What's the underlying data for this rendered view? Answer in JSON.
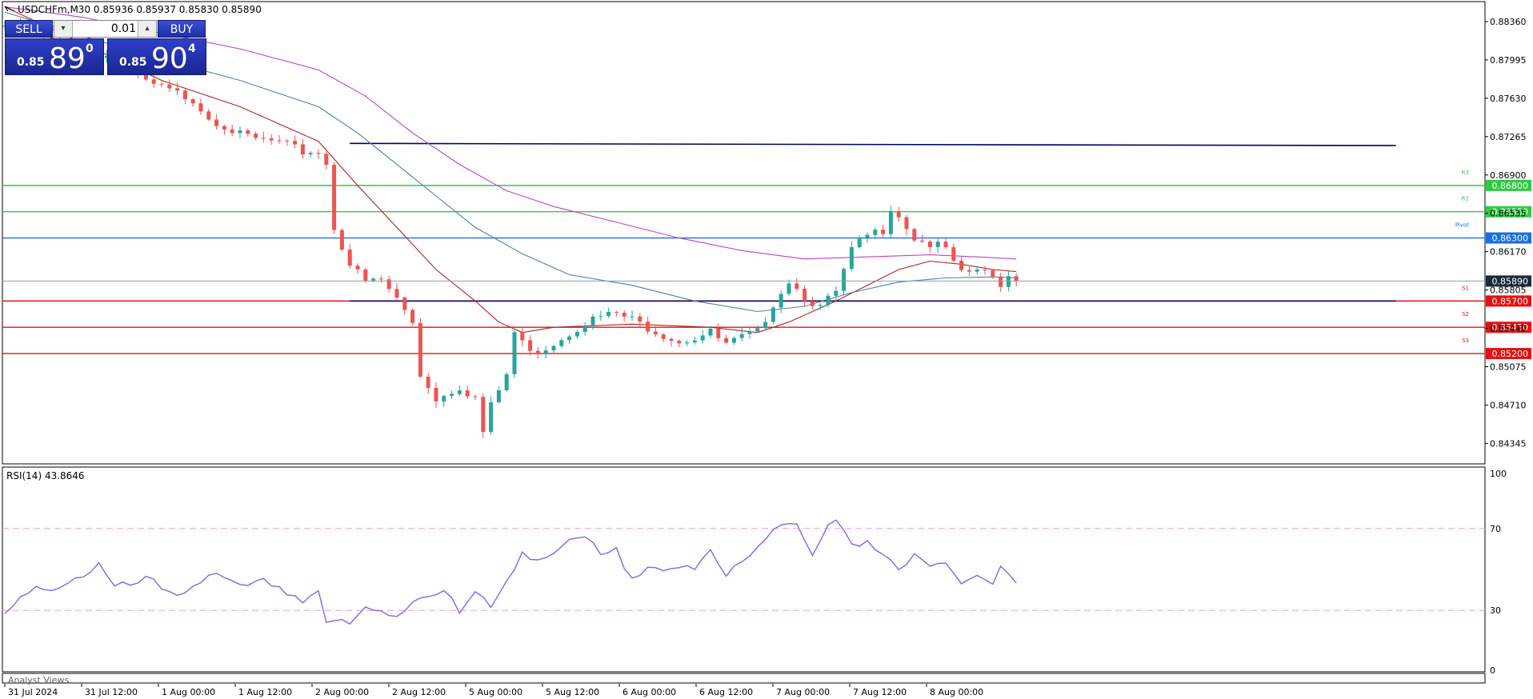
{
  "header": {
    "symbol_line": "USDCHFm,M30  0.85936 0.85937 0.85830 0.85890"
  },
  "trade_panel": {
    "sell_label": "SELL",
    "buy_label": "BUY",
    "lot": "0.01",
    "sell_price_small": "0.85",
    "sell_price_big": "89",
    "sell_price_sup": "0",
    "buy_price_small": "0.85",
    "buy_price_big": "90",
    "buy_price_sup": "4",
    "spin_down": "▾",
    "spin_up": "▴"
  },
  "rsi_label": "RSI(14) 43.8646",
  "analyst_label": "Analyst Views",
  "colors": {
    "bull": "#26a69a",
    "bear": "#ef5350",
    "ma_fast": "#b22222",
    "ma_mid": "#4682b4",
    "ma_slow": "#c040d0",
    "resistance": "#2ecc40",
    "pivot": "#1a6fe0",
    "support": "#e81010",
    "trendline": "#000066",
    "rsi": "#7b68ee",
    "rsi_levels": "#e0a0e0",
    "current": "#1a2a3a"
  },
  "chart_data": [
    {
      "type": "candlestick",
      "symbol": "USDCHFm",
      "timeframe": "M30",
      "ohlc_header": {
        "open": 0.85936,
        "high": 0.85937,
        "low": 0.8583,
        "close": 0.8589
      },
      "ylim": [
        0.8415,
        0.8855
      ],
      "y_ticks": [
        "0.88360",
        "0.87995",
        "0.87630",
        "0.87265",
        "0.86900",
        "0.86535",
        "0.86170",
        "0.85805",
        "0.85440",
        "0.85075",
        "0.84710",
        "0.84345"
      ],
      "x_ticks": [
        "31 Jul 2024",
        "31 Jul 12:00",
        "1 Aug 00:00",
        "1 Aug 12:00",
        "2 Aug 00:00",
        "2 Aug 12:00",
        "5 Aug 00:00",
        "5 Aug 12:00",
        "6 Aug 00:00",
        "6 Aug 12:00",
        "7 Aug 00:00",
        "7 Aug 12:00",
        "8 Aug 00:00"
      ],
      "close_path": [
        [
          0,
          0.8832
        ],
        [
          4,
          0.8822
        ],
        [
          8,
          0.8812
        ],
        [
          12,
          0.8805
        ],
        [
          15,
          0.88
        ],
        [
          18,
          0.8778
        ],
        [
          21,
          0.877
        ],
        [
          24,
          0.8762
        ],
        [
          26,
          0.8745
        ],
        [
          28,
          0.8737
        ],
        [
          30,
          0.8728
        ],
        [
          32,
          0.8724
        ],
        [
          34,
          0.8722
        ],
        [
          36,
          0.8718
        ],
        [
          38,
          0.8712
        ],
        [
          40,
          0.8712
        ],
        [
          41,
          0.87
        ],
        [
          42,
          0.864
        ],
        [
          44,
          0.8605
        ],
        [
          46,
          0.8588
        ],
        [
          48,
          0.859
        ],
        [
          50,
          0.8572
        ],
        [
          52,
          0.855
        ],
        [
          53,
          0.85
        ],
        [
          54,
          0.849
        ],
        [
          55,
          0.8475
        ],
        [
          56,
          0.8482
        ],
        [
          58,
          0.8488
        ],
        [
          60,
          0.8478
        ],
        [
          61,
          0.8445
        ],
        [
          62,
          0.847
        ],
        [
          64,
          0.85
        ],
        [
          65,
          0.854
        ],
        [
          66,
          0.853
        ],
        [
          68,
          0.8522
        ],
        [
          70,
          0.853
        ],
        [
          72,
          0.854
        ],
        [
          74,
          0.855
        ],
        [
          76,
          0.8555
        ],
        [
          78,
          0.8558
        ],
        [
          80,
          0.8552
        ],
        [
          82,
          0.8545
        ],
        [
          84,
          0.8538
        ],
        [
          86,
          0.8532
        ],
        [
          88,
          0.8535
        ],
        [
          90,
          0.854
        ],
        [
          92,
          0.8528
        ],
        [
          94,
          0.8535
        ],
        [
          96,
          0.854
        ],
        [
          98,
          0.8568
        ],
        [
          100,
          0.859
        ],
        [
          102,
          0.8574
        ],
        [
          104,
          0.8564
        ],
        [
          106,
          0.8578
        ],
        [
          108,
          0.8618
        ],
        [
          110,
          0.8632
        ],
        [
          112,
          0.8638
        ],
        [
          113,
          0.866
        ],
        [
          114,
          0.8652
        ],
        [
          116,
          0.863
        ],
        [
          118,
          0.8624
        ],
        [
          120,
          0.862
        ],
        [
          121,
          0.8605
        ],
        [
          122,
          0.8595
        ],
        [
          124,
          0.86
        ],
        [
          126,
          0.8592
        ],
        [
          127,
          0.8587
        ],
        [
          128,
          0.8594
        ],
        [
          129,
          0.8589
        ]
      ],
      "moving_averages": [
        {
          "color_key": "ma_fast",
          "points": [
            [
              0,
              0.885
            ],
            [
              10,
              0.8815
            ],
            [
              20,
              0.878
            ],
            [
              30,
              0.8755
            ],
            [
              40,
              0.8722
            ],
            [
              45,
              0.868
            ],
            [
              50,
              0.864
            ],
            [
              55,
              0.86
            ],
            [
              60,
              0.857
            ],
            [
              63,
              0.855
            ],
            [
              66,
              0.854
            ],
            [
              70,
              0.8545
            ],
            [
              80,
              0.8548
            ],
            [
              90,
              0.8545
            ],
            [
              96,
              0.854
            ],
            [
              100,
              0.855
            ],
            [
              106,
              0.857
            ],
            [
              110,
              0.8585
            ],
            [
              114,
              0.86
            ],
            [
              118,
              0.8608
            ],
            [
              122,
              0.8605
            ],
            [
              126,
              0.86
            ],
            [
              129,
              0.8598
            ]
          ]
        },
        {
          "color_key": "ma_mid",
          "points": [
            [
              0,
              0.8845
            ],
            [
              10,
              0.8822
            ],
            [
              20,
              0.88
            ],
            [
              30,
              0.878
            ],
            [
              40,
              0.8755
            ],
            [
              45,
              0.873
            ],
            [
              50,
              0.87
            ],
            [
              55,
              0.867
            ],
            [
              60,
              0.864
            ],
            [
              66,
              0.8615
            ],
            [
              72,
              0.8595
            ],
            [
              80,
              0.8585
            ],
            [
              88,
              0.857
            ],
            [
              96,
              0.856
            ],
            [
              102,
              0.8565
            ],
            [
              108,
              0.8578
            ],
            [
              114,
              0.8588
            ],
            [
              120,
              0.8592
            ],
            [
              126,
              0.8593
            ],
            [
              129,
              0.8592
            ]
          ]
        },
        {
          "color_key": "ma_slow",
          "points": [
            [
              0,
              0.885
            ],
            [
              10,
              0.884
            ],
            [
              20,
              0.8825
            ],
            [
              30,
              0.881
            ],
            [
              40,
              0.879
            ],
            [
              46,
              0.8765
            ],
            [
              52,
              0.873
            ],
            [
              58,
              0.87
            ],
            [
              64,
              0.8675
            ],
            [
              70,
              0.866
            ],
            [
              78,
              0.8645
            ],
            [
              86,
              0.863
            ],
            [
              94,
              0.8618
            ],
            [
              102,
              0.861
            ],
            [
              110,
              0.8612
            ],
            [
              118,
              0.8614
            ],
            [
              124,
              0.8612
            ],
            [
              129,
              0.861
            ]
          ]
        }
      ],
      "price_levels": [
        {
          "name": "R3",
          "value": "0.86800",
          "kind": "resistance"
        },
        {
          "name": "R2",
          "value": "0.86550",
          "kind": "resistance"
        },
        {
          "name": "Pivot",
          "value": "0.86300",
          "kind": "pivot"
        },
        {
          "name": "S1",
          "value": "0.85700",
          "kind": "support"
        },
        {
          "name": "S2",
          "value": "0.85450",
          "kind": "support"
        },
        {
          "name": "S3",
          "value": "0.85200",
          "kind": "support"
        }
      ],
      "trendlines": [
        {
          "from": [
            44,
            0.872
          ],
          "to": [
            157,
            0.8718
          ]
        },
        {
          "from": [
            44,
            0.857
          ],
          "to": [
            157,
            0.857
          ]
        }
      ],
      "current_price": "0.85890"
    },
    {
      "type": "line",
      "name": "RSI(14)",
      "last_value": 43.8646,
      "ylim": [
        0,
        100
      ],
      "y_ticks": [
        "100",
        "70",
        "30",
        "0"
      ],
      "levels": [
        70,
        30
      ],
      "values": [
        [
          0,
          28
        ],
        [
          4,
          40
        ],
        [
          8,
          44
        ],
        [
          12,
          52
        ],
        [
          14,
          40
        ],
        [
          18,
          44
        ],
        [
          22,
          38
        ],
        [
          26,
          48
        ],
        [
          30,
          40
        ],
        [
          34,
          44
        ],
        [
          38,
          35
        ],
        [
          40,
          40
        ],
        [
          41,
          25
        ],
        [
          44,
          22
        ],
        [
          46,
          30
        ],
        [
          50,
          28
        ],
        [
          53,
          38
        ],
        [
          56,
          40
        ],
        [
          58,
          28
        ],
        [
          60,
          38
        ],
        [
          62,
          30
        ],
        [
          64,
          45
        ],
        [
          66,
          60
        ],
        [
          68,
          55
        ],
        [
          70,
          58
        ],
        [
          72,
          62
        ],
        [
          74,
          65
        ],
        [
          76,
          56
        ],
        [
          78,
          58
        ],
        [
          80,
          46
        ],
        [
          82,
          54
        ],
        [
          84,
          52
        ],
        [
          86,
          50
        ],
        [
          88,
          48
        ],
        [
          90,
          58
        ],
        [
          92,
          46
        ],
        [
          94,
          56
        ],
        [
          96,
          62
        ],
        [
          98,
          70
        ],
        [
          100,
          75
        ],
        [
          101,
          70
        ],
        [
          103,
          55
        ],
        [
          105,
          70
        ],
        [
          106,
          74
        ],
        [
          108,
          60
        ],
        [
          110,
          66
        ],
        [
          112,
          58
        ],
        [
          114,
          52
        ],
        [
          116,
          55
        ],
        [
          118,
          50
        ],
        [
          120,
          52
        ],
        [
          122,
          42
        ],
        [
          124,
          50
        ],
        [
          126,
          44
        ],
        [
          127,
          52
        ],
        [
          129,
          44
        ]
      ]
    }
  ]
}
